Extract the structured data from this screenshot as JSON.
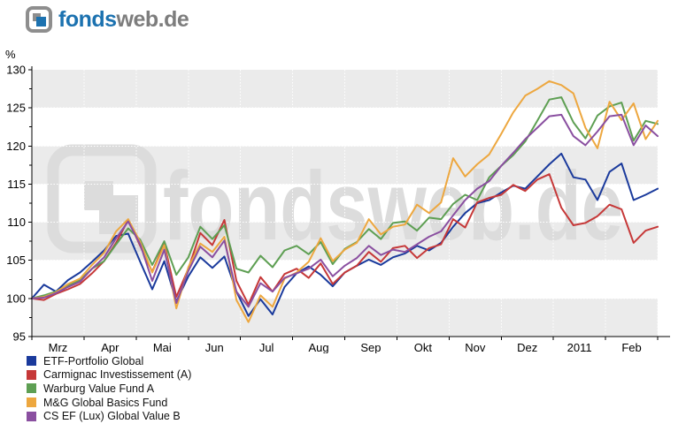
{
  "header": {
    "logo": {
      "text_primary": "fonds",
      "text_secondary": "web.de"
    }
  },
  "chart_data": {
    "type": "line",
    "title": "",
    "ylabel": "%",
    "ylim": [
      95,
      130
    ],
    "y_tick_step": 5,
    "y_minor_tick_step": 2.5,
    "x_tick_labels": [
      "Mrz",
      "Apr",
      "Mai",
      "Jun",
      "Jul",
      "Aug",
      "Sep",
      "Okt",
      "Nov",
      "Dez",
      "2011",
      "Feb"
    ],
    "grid": "alternating gray/white horizontal bands with white dotted gridlines",
    "band_color": "#ebebeb",
    "watermark_text": "fondsweb.de",
    "watermark_color": "#dcdcdc",
    "legend_position": "bottom-left",
    "series": [
      {
        "name": "ETF-Portfolio Global",
        "color": "#1a3a9c",
        "values": [
          100,
          101.8,
          100.9,
          102.4,
          103.4,
          104.8,
          106.3,
          108.2,
          108.5,
          104.8,
          101.2,
          104.9,
          99.6,
          102.9,
          105.4,
          104.0,
          105.5,
          100.9,
          97.7,
          99.9,
          97.9,
          101.5,
          103.3,
          104.2,
          103.1,
          101.6,
          103.4,
          104.3,
          105.1,
          104.4,
          105.4,
          105.9,
          106.9,
          106.3,
          107.3,
          109.4,
          111.2,
          112.5,
          112.9,
          113.9,
          114.8,
          114.4,
          116.0,
          117.6,
          119.0,
          115.9,
          115.6,
          112.9,
          116.6,
          117.7,
          112.9,
          113.6,
          114.4
        ]
      },
      {
        "name": "Carmignac Investissement (A)",
        "color": "#c63838",
        "values": [
          100,
          99.8,
          100.6,
          101.2,
          101.9,
          103.3,
          104.9,
          107.3,
          110.3,
          106.9,
          103.5,
          107.2,
          100.2,
          103.9,
          108.6,
          107.0,
          110.3,
          102.3,
          99.2,
          102.8,
          100.9,
          103.2,
          103.9,
          102.7,
          104.6,
          101.9,
          103.4,
          104.3,
          106.1,
          104.8,
          106.6,
          106.9,
          105.3,
          106.6,
          107.1,
          110.4,
          109.3,
          112.6,
          113.2,
          113.6,
          114.9,
          114.1,
          115.6,
          116.3,
          111.9,
          109.6,
          109.9,
          110.8,
          112.3,
          111.7,
          107.3,
          108.9,
          109.4
        ]
      },
      {
        "name": "Warburg Value Fund A",
        "color": "#5e9f53",
        "values": [
          100,
          100.4,
          100.9,
          101.7,
          102.4,
          103.9,
          104.9,
          107.1,
          109.2,
          107.7,
          104.4,
          107.5,
          103.1,
          105.4,
          109.4,
          107.8,
          109.6,
          103.9,
          103.4,
          105.6,
          104.1,
          106.3,
          106.9,
          105.8,
          107.4,
          104.5,
          106.5,
          107.4,
          109.1,
          107.8,
          109.9,
          110.1,
          108.9,
          110.6,
          110.4,
          112.4,
          113.6,
          112.9,
          115.9,
          117.4,
          118.8,
          120.6,
          123.3,
          126.1,
          126.4,
          123.1,
          121.0,
          124.0,
          125.2,
          125.7,
          120.7,
          123.3,
          122.9
        ]
      },
      {
        "name": "M&G Global Basics Fund",
        "color": "#eda73f",
        "values": [
          100,
          100.2,
          100.8,
          101.9,
          102.6,
          104.4,
          106.0,
          108.8,
          110.4,
          107.4,
          103.4,
          107.0,
          98.7,
          104.1,
          107.2,
          106.1,
          108.1,
          99.8,
          96.9,
          100.4,
          98.9,
          102.6,
          103.4,
          104.8,
          107.9,
          104.9,
          106.4,
          107.3,
          110.4,
          108.4,
          109.4,
          109.7,
          112.3,
          111.2,
          112.6,
          118.4,
          116.0,
          117.6,
          118.9,
          121.6,
          124.4,
          126.6,
          127.5,
          128.5,
          128.0,
          126.9,
          122.4,
          119.7,
          125.8,
          123.4,
          125.6,
          120.9,
          123.3
        ]
      },
      {
        "name": "CS EF (Lux) Global Value B",
        "color": "#8a4fa0",
        "values": [
          100,
          100.1,
          100.7,
          101.5,
          102.2,
          103.9,
          105.4,
          107.9,
          110.1,
          107.1,
          102.3,
          106.4,
          99.4,
          103.6,
          106.8,
          105.4,
          107.6,
          100.9,
          98.9,
          102.0,
          100.9,
          102.7,
          103.3,
          103.9,
          105.1,
          102.9,
          104.3,
          105.3,
          106.9,
          105.7,
          106.4,
          106.1,
          107.1,
          108.1,
          108.8,
          110.9,
          112.9,
          114.4,
          115.4,
          117.4,
          119.1,
          120.9,
          122.4,
          123.9,
          124.1,
          121.3,
          120.1,
          121.9,
          123.9,
          124.1,
          120.1,
          122.7,
          121.3
        ]
      }
    ]
  }
}
